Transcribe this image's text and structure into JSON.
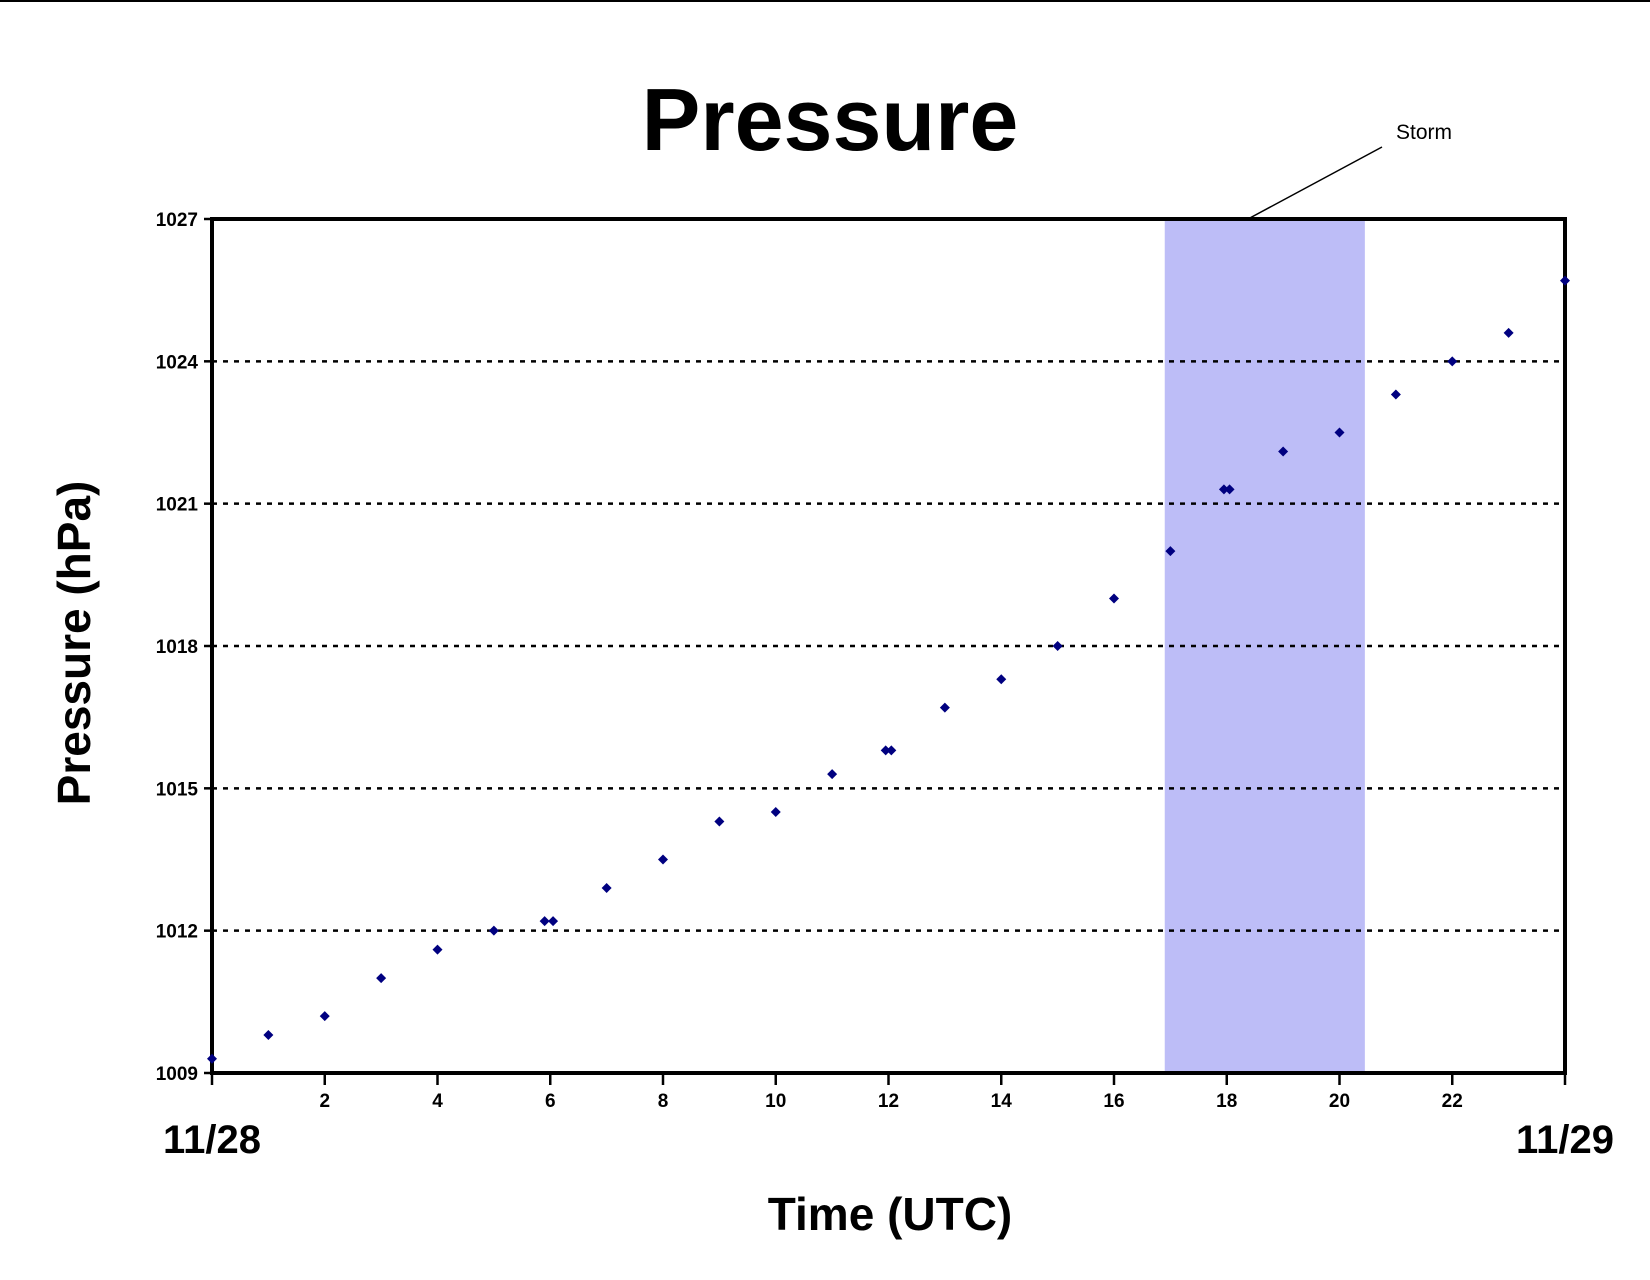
{
  "chart_data": {
    "type": "scatter",
    "title": "Pressure",
    "xlabel": "Time (UTC)",
    "ylabel": "Pressure (hPa)",
    "xlim": [
      0,
      24
    ],
    "ylim": [
      1009,
      1027
    ],
    "x_ticks": [
      0,
      2,
      4,
      6,
      8,
      10,
      12,
      14,
      16,
      18,
      20,
      22,
      24
    ],
    "x_tick_labels": [
      "",
      "2",
      "4",
      "6",
      "8",
      "10",
      "12",
      "14",
      "16",
      "18",
      "20",
      "22",
      ""
    ],
    "y_ticks": [
      1009,
      1012,
      1015,
      1018,
      1021,
      1024,
      1027
    ],
    "y_tick_labels": [
      "1009",
      "1012",
      "1015",
      "1018",
      "1021",
      "1024",
      "1027"
    ],
    "date_labels": [
      {
        "x": 0,
        "text": "11/28"
      },
      {
        "x": 24,
        "text": "11/29"
      }
    ],
    "grid": {
      "y": "dotted",
      "x": false
    },
    "marker": "diamond",
    "colors": {
      "points": "#000080",
      "storm_band": "#BDBDF7",
      "axes": "#000000"
    },
    "series": [
      {
        "points": [
          [
            0,
            1009.3
          ],
          [
            1,
            1009.8
          ],
          [
            2,
            1010.2
          ],
          [
            3,
            1011.0
          ],
          [
            4,
            1011.6
          ],
          [
            5,
            1012.0
          ],
          [
            5.9,
            1012.2
          ],
          [
            6.05,
            1012.2
          ],
          [
            7,
            1012.9
          ],
          [
            8,
            1013.5
          ],
          [
            9,
            1014.3
          ],
          [
            10,
            1014.5
          ],
          [
            11,
            1015.3
          ],
          [
            11.95,
            1015.8
          ],
          [
            12.05,
            1015.8
          ],
          [
            13,
            1016.7
          ],
          [
            14,
            1017.3
          ],
          [
            15,
            1018.0
          ],
          [
            16,
            1019.0
          ],
          [
            17,
            1020.0
          ],
          [
            17.95,
            1021.3
          ],
          [
            18.05,
            1021.3
          ],
          [
            19,
            1022.1
          ],
          [
            20,
            1022.5
          ],
          [
            21,
            1023.3
          ],
          [
            22,
            1024.0
          ],
          [
            23,
            1024.6
          ],
          [
            24,
            1025.7
          ]
        ]
      }
    ],
    "shaded_regions": [
      {
        "x_start": 16.9,
        "x_end": 20.45,
        "label": "Storm"
      }
    ]
  }
}
